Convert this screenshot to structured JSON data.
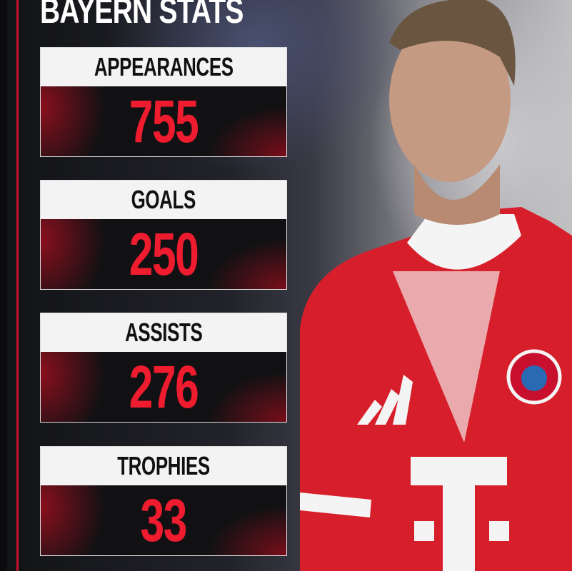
{
  "title": "BAYERN STATS",
  "stats": [
    {
      "label": "APPEARANCES",
      "value": "755"
    },
    {
      "label": "GOALS",
      "value": "250"
    },
    {
      "label": "ASSISTS",
      "value": "276"
    },
    {
      "label": "TROPHIES",
      "value": "33"
    }
  ],
  "colors": {
    "accent": "#ee1c2e",
    "jersey": "#d71f2b",
    "header_bg": "#f3f3f3",
    "value_bg": "#111113"
  }
}
